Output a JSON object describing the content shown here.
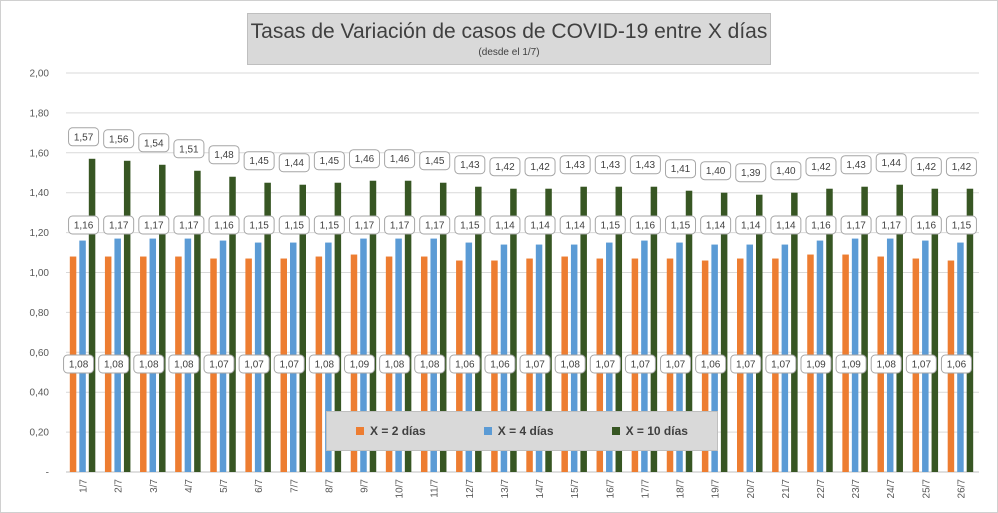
{
  "chart_data": {
    "type": "bar",
    "title": "Tasas de Variación de casos de COVID-19 entre X días",
    "subtitle": "(desde el 1/7)",
    "categories": [
      "1/7",
      "2/7",
      "3/7",
      "4/7",
      "5/7",
      "6/7",
      "7/7",
      "8/7",
      "9/7",
      "10/7",
      "11/7",
      "12/7",
      "13/7",
      "14/7",
      "15/7",
      "16/7",
      "17/7",
      "18/7",
      "19/7",
      "20/7",
      "21/7",
      "22/7",
      "23/7",
      "24/7",
      "25/7",
      "26/7"
    ],
    "series": [
      {
        "name": "X = 2 días",
        "color": "#ed7d31",
        "values": [
          1.08,
          1.08,
          1.08,
          1.08,
          1.07,
          1.07,
          1.07,
          1.08,
          1.09,
          1.08,
          1.08,
          1.06,
          1.06,
          1.07,
          1.08,
          1.07,
          1.07,
          1.07,
          1.06,
          1.07,
          1.07,
          1.09,
          1.09,
          1.08,
          1.07,
          1.06
        ]
      },
      {
        "name": "X = 4 días",
        "color": "#5b9bd5",
        "values": [
          1.16,
          1.17,
          1.17,
          1.17,
          1.16,
          1.15,
          1.15,
          1.15,
          1.17,
          1.17,
          1.17,
          1.15,
          1.14,
          1.14,
          1.14,
          1.15,
          1.16,
          1.15,
          1.14,
          1.14,
          1.14,
          1.16,
          1.17,
          1.17,
          1.16,
          1.15
        ]
      },
      {
        "name": "X = 10 días",
        "color": "#375623",
        "values": [
          1.57,
          1.56,
          1.54,
          1.51,
          1.48,
          1.45,
          1.44,
          1.45,
          1.46,
          1.46,
          1.45,
          1.43,
          1.42,
          1.42,
          1.43,
          1.43,
          1.43,
          1.41,
          1.4,
          1.39,
          1.4,
          1.42,
          1.43,
          1.44,
          1.42,
          1.42
        ]
      }
    ],
    "ylim": [
      0,
      2.0
    ],
    "yticks": [
      "-",
      "0,20",
      "0,40",
      "0,60",
      "0,80",
      "1,00",
      "1,20",
      "1,40",
      "1,60",
      "1,80",
      "2,00"
    ],
    "grid": true,
    "legend_position": "bottom-center"
  }
}
